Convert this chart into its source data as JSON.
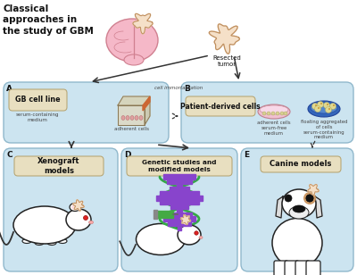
{
  "bg_color": "#ffffff",
  "panel_color": "#cce4f0",
  "label_box_color": "#e8dfc0",
  "brain_color": "#f5b8c8",
  "brain_edge": "#d08090",
  "tumor_fill": "#f5e0c8",
  "tumor_edge": "#c09060",
  "arrow_color": "#333333",
  "text_color": "#111111",
  "sub_text_color": "#444444",
  "panel_edge": "#90b8cc",
  "title_text": "Classical\napproaches in\nthe study of GBM",
  "resected_tumor": "Resected\ntumor",
  "cell_immortalization": "cell immortalization",
  "box_A_text": "GB cell line",
  "box_A_sub1": "serum-containing\nmedium",
  "box_A_sub2": "adherent cells",
  "box_B_text": "Patient-derived cells",
  "box_B_sub1": "adherent cells\nserum-free\nmedium",
  "box_B_sub2": "floating aggregated\nof cells\nserum-containing\nmedium",
  "box_C_text": "Xenograft\nmodels",
  "box_D_text": "Genetic studies and\nmodified models",
  "box_E_text": "Canine models",
  "panel_A_label": "A",
  "panel_B_label": "B",
  "panel_C_label": "C",
  "panel_D_label": "D",
  "panel_E_label": "E"
}
